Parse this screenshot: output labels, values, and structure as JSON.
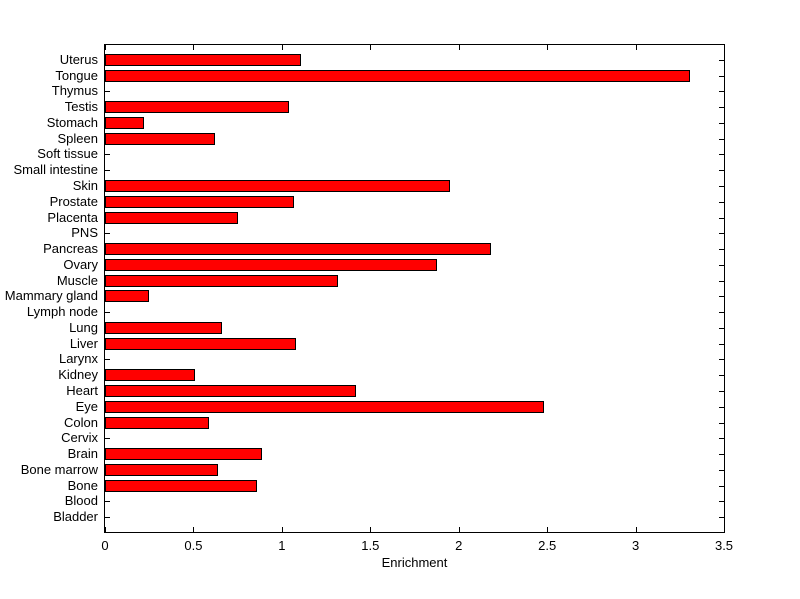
{
  "chart_data": {
    "type": "bar",
    "orientation": "horizontal",
    "title": "",
    "xlabel": "Enrichment",
    "ylabel": "",
    "xlim": [
      0,
      3.5
    ],
    "x_ticks": [
      0,
      0.5,
      1,
      1.5,
      2,
      2.5,
      3,
      3.5
    ],
    "x_tick_labels": [
      "0",
      "0.5",
      "1",
      "1.5",
      "2",
      "2.5",
      "3",
      "3.5"
    ],
    "grid": false,
    "legend": null,
    "bar_color": "#FF0000",
    "bar_edge_color": "#000000",
    "axis_color": "#000000",
    "background_color": "#FFFFFF",
    "categories": [
      "Uterus",
      "Tongue",
      "Thymus",
      "Testis",
      "Stomach",
      "Spleen",
      "Soft tissue",
      "Small intestine",
      "Skin",
      "Prostate",
      "Placenta",
      "PNS",
      "Pancreas",
      "Ovary",
      "Muscle",
      "Mammary gland",
      "Lymph node",
      "Lung",
      "Liver",
      "Larynx",
      "Kidney",
      "Heart",
      "Eye",
      "Colon",
      "Cervix",
      "Brain",
      "Bone marrow",
      "Bone",
      "Blood",
      "Bladder"
    ],
    "values": [
      1.11,
      3.31,
      0,
      1.04,
      0.22,
      0.62,
      0,
      0,
      1.95,
      1.07,
      0.75,
      0,
      2.18,
      1.88,
      1.32,
      0.25,
      0,
      0.66,
      1.08,
      0,
      0.51,
      1.42,
      2.48,
      0.59,
      0,
      0.89,
      0.64,
      0.86,
      0,
      0
    ]
  }
}
